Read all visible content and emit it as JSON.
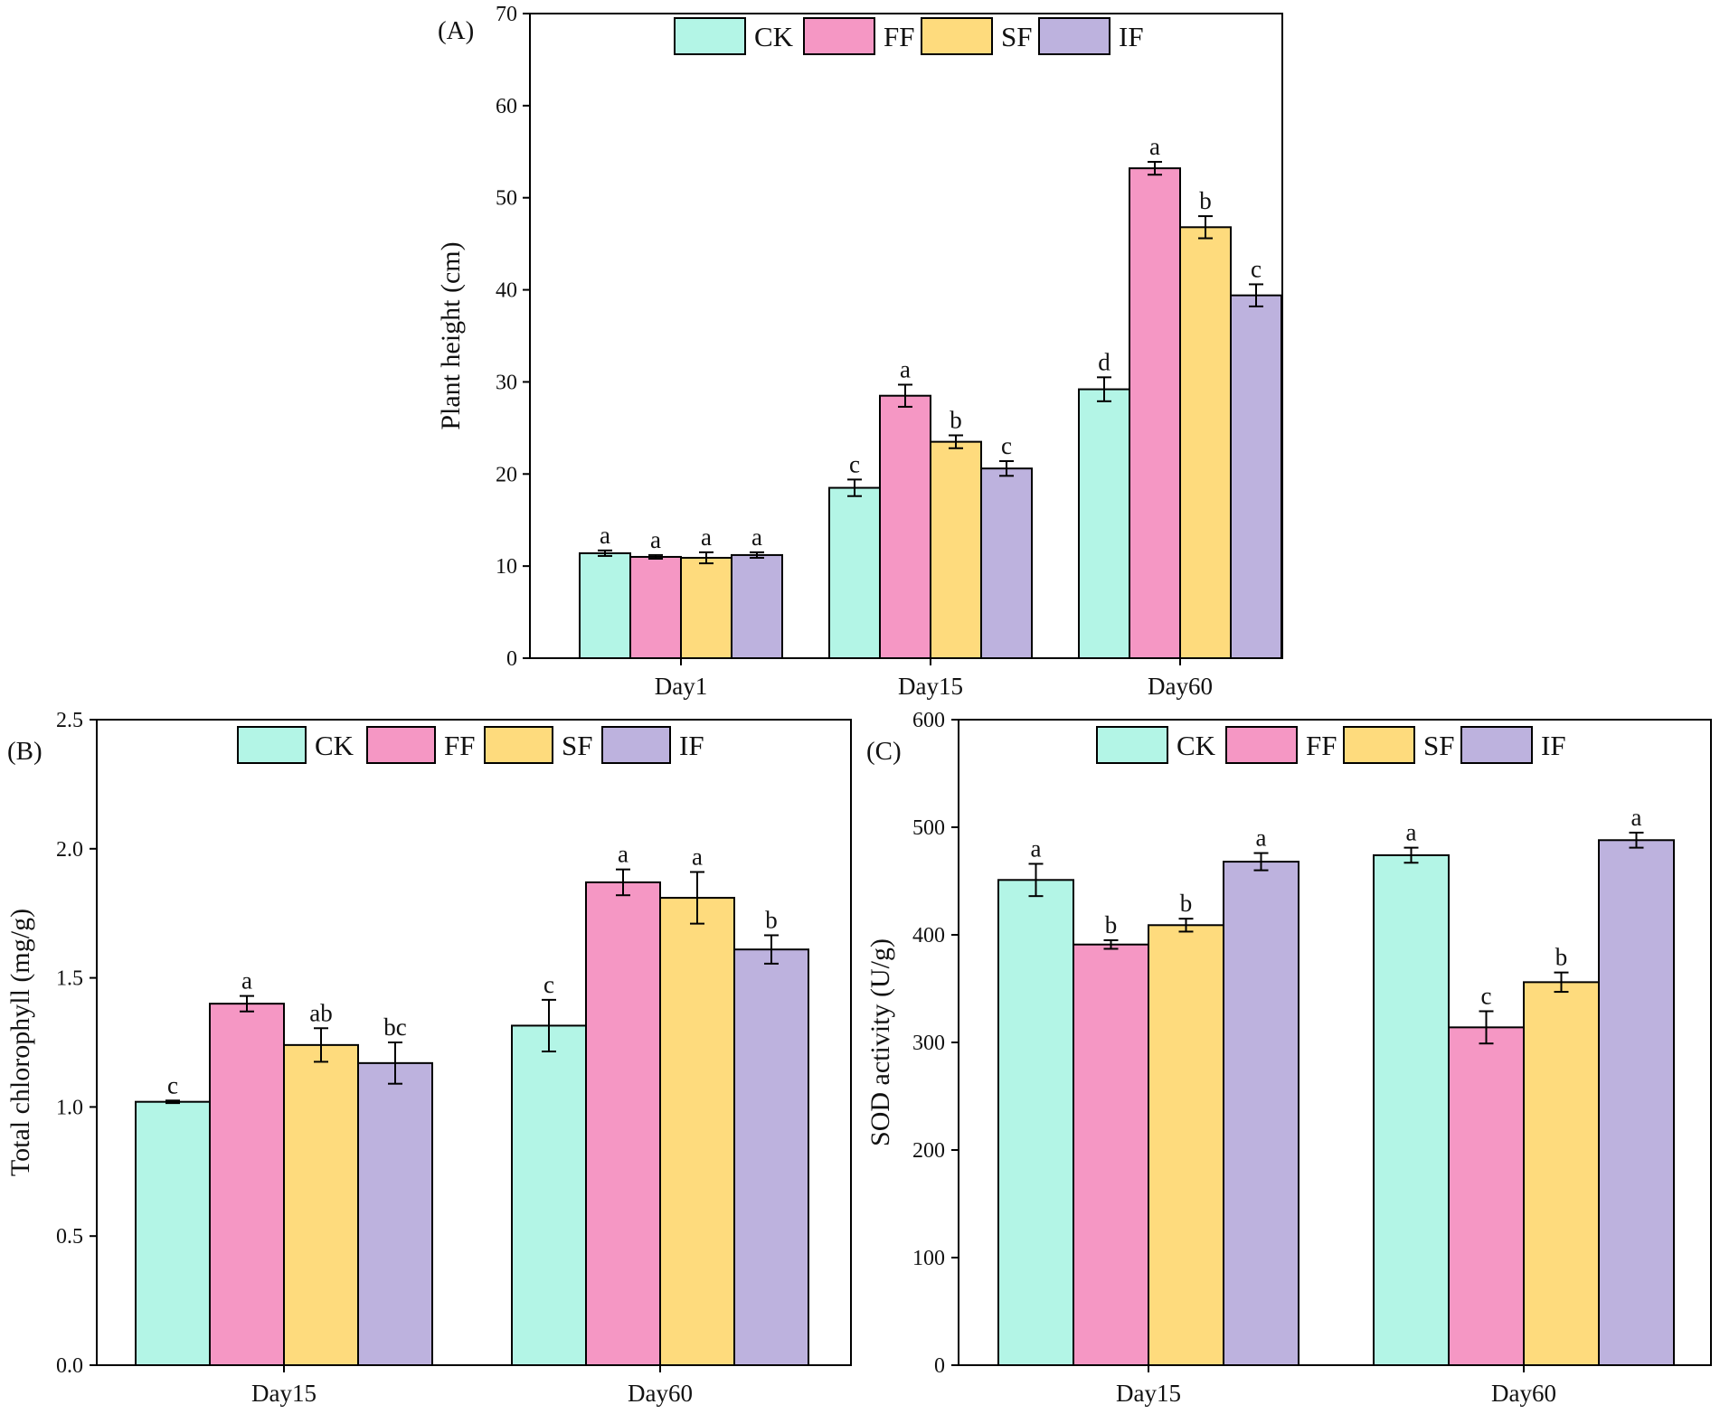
{
  "colors": {
    "CK": "#b3f5e6",
    "FF": "#f597c4",
    "SF": "#fedb7d",
    "IF": "#bdb2de"
  },
  "chart_data": [
    {
      "type": "bar",
      "panel": "(A)",
      "ylabel": "Plant height (cm)",
      "ylim": [
        0,
        70
      ],
      "yticks": [
        "0",
        "10",
        "20",
        "30",
        "40",
        "50",
        "60",
        "70"
      ],
      "categories": [
        "Day1",
        "Day15",
        "Day60"
      ],
      "legend": [
        "CK",
        "FF",
        "SF",
        "IF"
      ],
      "series": [
        {
          "name": "CK",
          "values": [
            11.4,
            18.5,
            29.2
          ],
          "errors": [
            0.3,
            0.9,
            1.3
          ],
          "labels": [
            "a",
            "c",
            "d"
          ]
        },
        {
          "name": "FF",
          "values": [
            11.0,
            28.5,
            53.2
          ],
          "errors": [
            0.2,
            1.2,
            0.7
          ],
          "labels": [
            "a",
            "a",
            "a"
          ]
        },
        {
          "name": "SF",
          "values": [
            10.9,
            23.5,
            46.8
          ],
          "errors": [
            0.6,
            0.7,
            1.2
          ],
          "labels": [
            "a",
            "b",
            "b"
          ]
        },
        {
          "name": "IF",
          "values": [
            11.2,
            20.6,
            39.4
          ],
          "errors": [
            0.3,
            0.8,
            1.2
          ],
          "labels": [
            "a",
            "c",
            "c"
          ]
        }
      ]
    },
    {
      "type": "bar",
      "panel": "(B)",
      "ylabel": "Total chlorophyll (mg/g)",
      "ylim": [
        0,
        2.5
      ],
      "yticks": [
        "0.0",
        "0.5",
        "1.0",
        "1.5",
        "2.0",
        "2.5"
      ],
      "categories": [
        "Day15",
        "Day60"
      ],
      "legend": [
        "CK",
        "FF",
        "SF",
        "IF"
      ],
      "series": [
        {
          "name": "CK",
          "values": [
            1.02,
            1.315
          ],
          "errors": [
            0.005,
            0.1
          ],
          "labels": [
            "c",
            "c"
          ]
        },
        {
          "name": "FF",
          "values": [
            1.4,
            1.87
          ],
          "errors": [
            0.03,
            0.05
          ],
          "labels": [
            "a",
            "a"
          ]
        },
        {
          "name": "SF",
          "values": [
            1.24,
            1.81
          ],
          "errors": [
            0.065,
            0.1
          ],
          "labels": [
            "ab",
            "a"
          ]
        },
        {
          "name": "IF",
          "values": [
            1.17,
            1.61
          ],
          "errors": [
            0.08,
            0.055
          ],
          "labels": [
            "bc",
            "b"
          ]
        }
      ]
    },
    {
      "type": "bar",
      "panel": "(C)",
      "ylabel": "SOD activity (U/g)",
      "ylim": [
        0,
        600
      ],
      "yticks": [
        "0",
        "100",
        "200",
        "300",
        "400",
        "500",
        "600"
      ],
      "categories": [
        "Day15",
        "Day60"
      ],
      "legend": [
        "CK",
        "FF",
        "SF",
        "IF"
      ],
      "series": [
        {
          "name": "CK",
          "values": [
            451,
            474
          ],
          "errors": [
            15,
            7
          ],
          "labels": [
            "a",
            "a"
          ]
        },
        {
          "name": "FF",
          "values": [
            391,
            314
          ],
          "errors": [
            4,
            15
          ],
          "labels": [
            "b",
            "c"
          ]
        },
        {
          "name": "SF",
          "values": [
            409,
            356
          ],
          "errors": [
            6,
            9
          ],
          "labels": [
            "b",
            "b"
          ]
        },
        {
          "name": "IF",
          "values": [
            468,
            488
          ],
          "errors": [
            8,
            7
          ],
          "labels": [
            "a",
            "a"
          ]
        }
      ]
    }
  ]
}
